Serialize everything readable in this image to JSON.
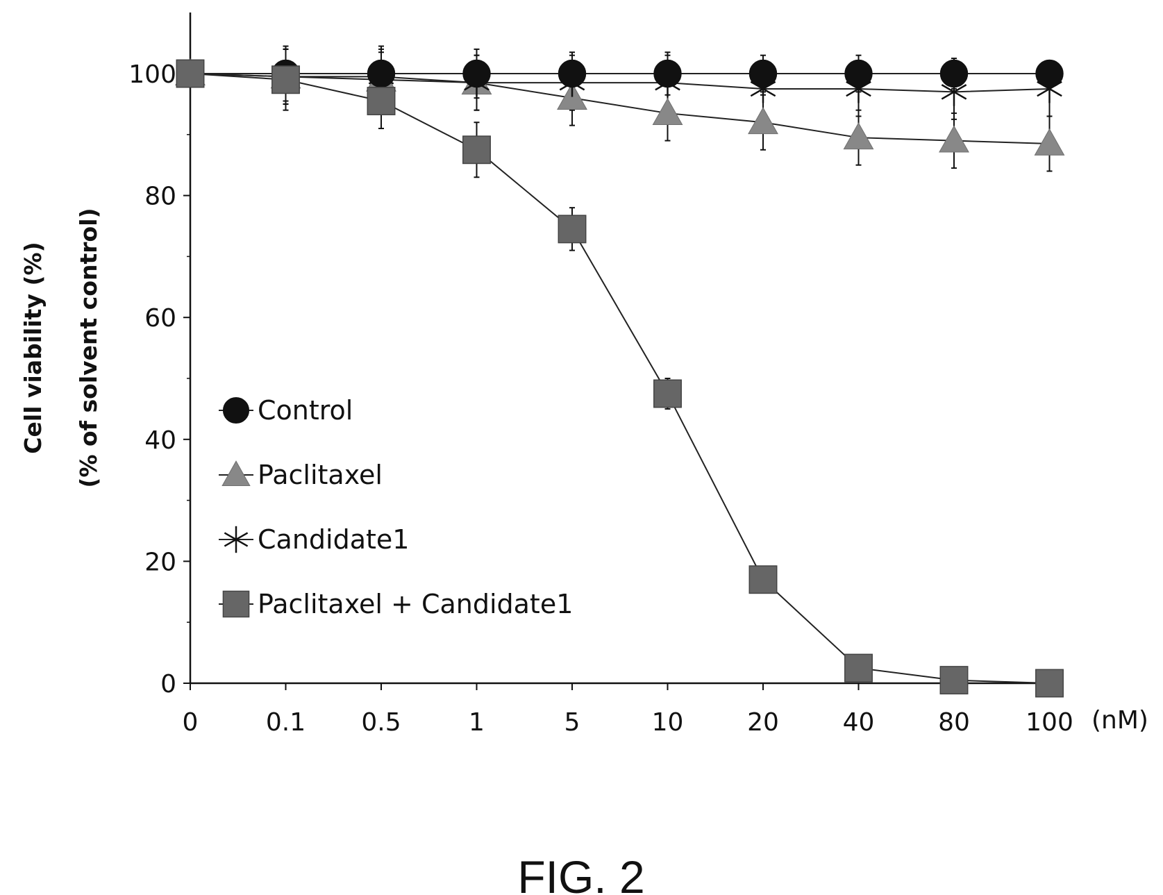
{
  "chart_data": {
    "type": "line",
    "title": "",
    "caption": "FIG. 2",
    "ylabel_line1": "Cell viability (%)",
    "ylabel_line2": "(% of solvent control)",
    "x_unit": "(nM)",
    "categories": [
      "0",
      "0.1",
      "0.5",
      "1",
      "5",
      "10",
      "20",
      "40",
      "80",
      "100"
    ],
    "ylim": [
      0,
      100
    ],
    "yticks": [
      0,
      20,
      40,
      60,
      80,
      100
    ],
    "grid": false,
    "legend_position": "center-left",
    "series": [
      {
        "name": "Control",
        "marker": "circle",
        "color": "#111111",
        "values": [
          100,
          100,
          100,
          100,
          100,
          100,
          100,
          100,
          100,
          100
        ],
        "errors": [
          0,
          4.5,
          4.5,
          4,
          3.5,
          3.5,
          3,
          3,
          2.5,
          2
        ]
      },
      {
        "name": "Paclitaxel",
        "marker": "triangle",
        "color": "#888888",
        "values": [
          100,
          99.5,
          99,
          98.5,
          96,
          93.5,
          92,
          89.5,
          89,
          88.5
        ],
        "errors": [
          0,
          4.5,
          4.5,
          4.5,
          4.5,
          4.5,
          4.5,
          4.5,
          4.5,
          4.5
        ]
      },
      {
        "name": "Candidate1",
        "marker": "asterisk",
        "color": "#111111",
        "values": [
          100,
          99.5,
          99.5,
          98.5,
          98.5,
          98.5,
          97.5,
          97.5,
          97,
          97.5
        ],
        "errors": [
          0,
          4.5,
          4.5,
          4.5,
          4.5,
          4.5,
          4.5,
          4.5,
          4.5,
          4.5
        ]
      },
      {
        "name": "Paclitaxel + Candidate1",
        "marker": "square",
        "color": "#666666",
        "values": [
          100,
          99,
          95.5,
          87.5,
          74.5,
          47.5,
          17,
          2.5,
          0.5,
          0
        ],
        "errors": [
          0,
          5,
          4.5,
          4.5,
          3.5,
          2.5,
          0,
          0,
          0,
          0
        ]
      }
    ]
  }
}
